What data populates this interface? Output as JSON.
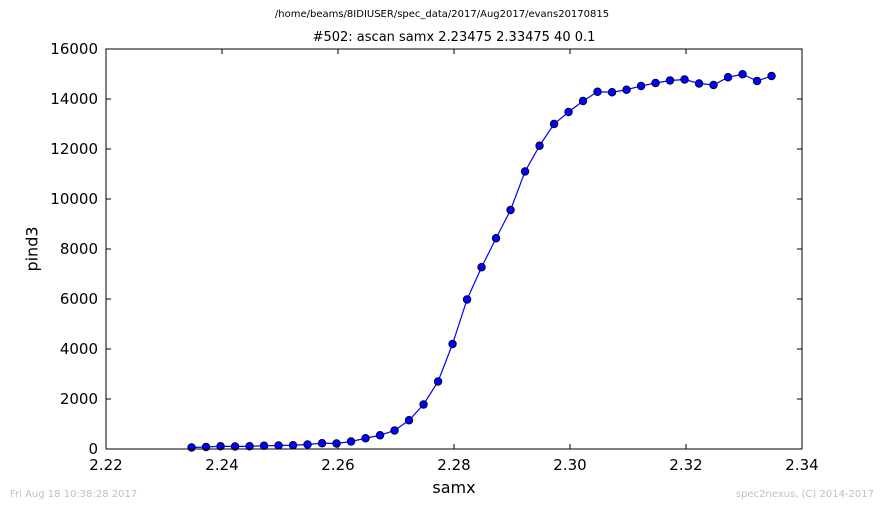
{
  "page": {
    "suptitle": "/home/beams/8IDIUSER/spec_data/2017/Aug2017/evans20170815",
    "footer_left": "Fri Aug 18 10:38:28 2017",
    "footer_right": "spec2nexus, (C) 2014-2017"
  },
  "chart_data": {
    "type": "line",
    "title": "#502: ascan  samx 2.23475 2.33475  40 0.1",
    "xlabel": "samx",
    "ylabel": "pind3",
    "xlim": [
      2.22,
      2.34
    ],
    "ylim": [
      0,
      16000
    ],
    "x_ticks": [
      "2.22",
      "2.24",
      "2.26",
      "2.28",
      "2.30",
      "2.32",
      "2.34"
    ],
    "y_ticks": [
      "0",
      "2000",
      "4000",
      "6000",
      "8000",
      "10000",
      "12000",
      "14000",
      "16000"
    ],
    "grid": false,
    "series": [
      {
        "color": "#0000ff",
        "marker": "circle",
        "x": [
          2.23475,
          2.23725,
          2.23975,
          2.24225,
          2.24475,
          2.24725,
          2.24975,
          2.25225,
          2.25475,
          2.25725,
          2.25975,
          2.26225,
          2.26475,
          2.26725,
          2.26975,
          2.27225,
          2.27475,
          2.27725,
          2.27975,
          2.28225,
          2.28475,
          2.28725,
          2.28975,
          2.29225,
          2.29475,
          2.29725,
          2.29975,
          2.30225,
          2.30475,
          2.30725,
          2.30975,
          2.31225,
          2.31475,
          2.31725,
          2.31975,
          2.32225,
          2.32475,
          2.32725,
          2.32975,
          2.33225,
          2.33475
        ],
        "y": [
          60,
          80,
          110,
          100,
          110,
          130,
          140,
          150,
          180,
          230,
          220,
          300,
          430,
          550,
          740,
          1150,
          1780,
          2700,
          4200,
          5980,
          7270,
          8430,
          9560,
          11100,
          12130,
          13000,
          13480,
          13920,
          14290,
          14270,
          14370,
          14520,
          14640,
          14740,
          14780,
          14620,
          14560,
          14870,
          14990,
          14720,
          14920
        ]
      }
    ]
  }
}
